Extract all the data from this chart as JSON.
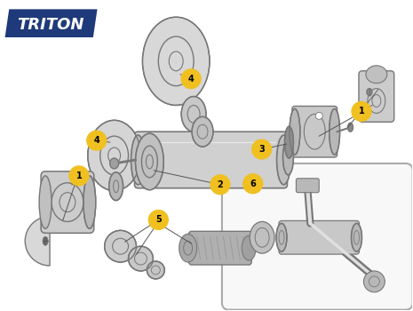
{
  "bg_color": "#ffffff",
  "logo_bg": "#1e3a7a",
  "logo_text": "TRITON",
  "logo_text_color": "#ffffff",
  "badge_color": "#f0c020",
  "badge_text_color": "#000000",
  "badge_border": "#c8960a",
  "line_color": "#555555",
  "part_fill": "#d8d8d8",
  "part_edge": "#777777",
  "dark_fill": "#b0b0b0",
  "box_edge": "#999999",
  "figsize": [
    4.65,
    3.5
  ],
  "dpi": 100
}
